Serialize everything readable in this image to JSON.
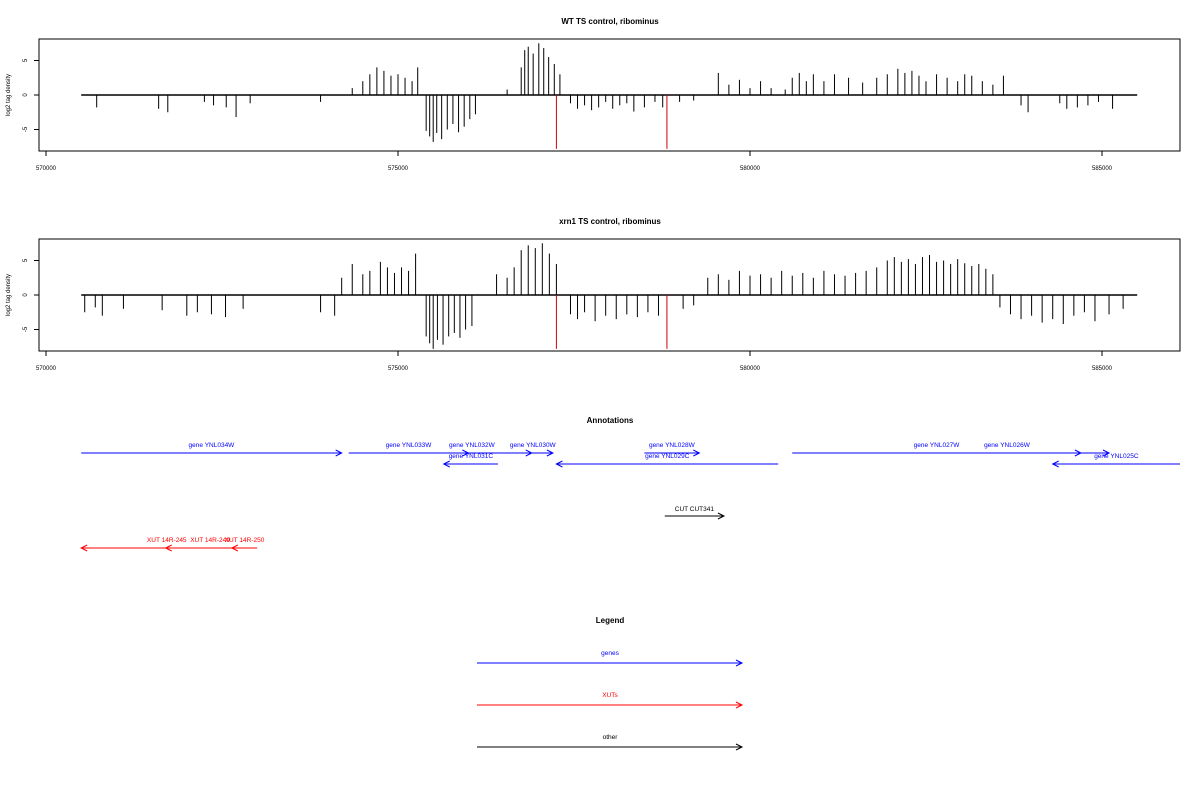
{
  "chart_data": [
    {
      "type": "bar",
      "title": "WT TS control, ribominus",
      "xlabel": "",
      "ylabel": "log2 tag density",
      "xlim": [
        570000,
        586000
      ],
      "ylim": [
        -8,
        8
      ],
      "x_ticks": [
        570000,
        575000,
        580000,
        585000
      ],
      "x_tick_labels": [
        "570000",
        "575000",
        "580000",
        "585000"
      ],
      "y_ticks": [
        -5,
        0,
        5
      ],
      "y_tick_labels": [
        "-5",
        "0",
        "5"
      ],
      "baseline": {
        "from": 570500,
        "to": 585500
      },
      "series": [
        {
          "color": "#000000",
          "bars": [
            [
              570720,
              -1.8
            ],
            [
              571600,
              -2.0
            ],
            [
              571730,
              -2.5
            ],
            [
              572250,
              -1.0
            ],
            [
              572380,
              -1.5
            ],
            [
              572560,
              -1.8
            ],
            [
              572700,
              -3.2
            ],
            [
              572900,
              -1.2
            ],
            [
              573900,
              -1.0
            ],
            [
              574350,
              1.0
            ],
            [
              574500,
              2.0
            ],
            [
              574600,
              3.0
            ],
            [
              574700,
              4.0
            ],
            [
              574800,
              3.5
            ],
            [
              574900,
              2.8
            ],
            [
              575000,
              3.0
            ],
            [
              575100,
              2.5
            ],
            [
              575200,
              2.0
            ],
            [
              575280,
              4.0
            ],
            [
              575400,
              -5.2
            ],
            [
              575450,
              -6.0
            ],
            [
              575500,
              -6.8
            ],
            [
              575550,
              -5.5
            ],
            [
              575620,
              -6.4
            ],
            [
              575700,
              -5.0
            ],
            [
              575780,
              -4.2
            ],
            [
              575860,
              -5.4
            ],
            [
              575940,
              -4.6
            ],
            [
              576020,
              -3.5
            ],
            [
              576100,
              -2.8
            ],
            [
              576550,
              0.8
            ],
            [
              576750,
              4.0
            ],
            [
              576800,
              6.5
            ],
            [
              576850,
              7.0
            ],
            [
              576920,
              6.0
            ],
            [
              577000,
              7.5
            ],
            [
              577070,
              6.8
            ],
            [
              577140,
              5.5
            ],
            [
              577220,
              4.5
            ],
            [
              577300,
              3.0
            ],
            [
              577450,
              -1.2
            ],
            [
              577550,
              -2.0
            ],
            [
              577650,
              -1.5
            ],
            [
              577750,
              -2.2
            ],
            [
              577850,
              -1.8
            ],
            [
              577950,
              -1.0
            ],
            [
              578050,
              -2.0
            ],
            [
              578150,
              -1.5
            ],
            [
              578250,
              -1.2
            ],
            [
              578350,
              -2.4
            ],
            [
              578500,
              -1.8
            ],
            [
              578650,
              -1.0
            ],
            [
              578760,
              -1.8
            ],
            [
              579000,
              -1.0
            ],
            [
              579200,
              -0.8
            ],
            [
              579550,
              3.2
            ],
            [
              579700,
              1.5
            ],
            [
              579850,
              2.2
            ],
            [
              580000,
              1.0
            ],
            [
              580150,
              2.0
            ],
            [
              580300,
              1.0
            ],
            [
              580500,
              0.8
            ],
            [
              580600,
              2.5
            ],
            [
              580700,
              3.2
            ],
            [
              580800,
              2.0
            ],
            [
              580900,
              3.0
            ],
            [
              581050,
              2.0
            ],
            [
              581200,
              3.0
            ],
            [
              581400,
              2.5
            ],
            [
              581600,
              1.8
            ],
            [
              581800,
              2.5
            ],
            [
              581950,
              3.0
            ],
            [
              582100,
              3.8
            ],
            [
              582200,
              3.2
            ],
            [
              582300,
              3.5
            ],
            [
              582400,
              2.8
            ],
            [
              582500,
              2.0
            ],
            [
              582650,
              3.0
            ],
            [
              582800,
              2.5
            ],
            [
              582950,
              2.0
            ],
            [
              583050,
              3.0
            ],
            [
              583150,
              2.8
            ],
            [
              583300,
              2.0
            ],
            [
              583450,
              1.5
            ],
            [
              583600,
              2.8
            ],
            [
              583850,
              -1.5
            ],
            [
              583950,
              -2.5
            ],
            [
              584400,
              -1.2
            ],
            [
              584500,
              -2.0
            ],
            [
              584650,
              -1.8
            ],
            [
              584800,
              -1.5
            ],
            [
              584950,
              -1.0
            ],
            [
              585150,
              -2.0
            ]
          ]
        },
        {
          "color": "#cc0000",
          "bars": [
            [
              577250,
              -7.8
            ],
            [
              578820,
              -7.8
            ]
          ]
        }
      ]
    },
    {
      "type": "bar",
      "title": "xrn1 TS control, ribominus",
      "xlabel": "",
      "ylabel": "log2 tag density",
      "xlim": [
        570000,
        586000
      ],
      "ylim": [
        -8,
        8
      ],
      "x_ticks": [
        570000,
        575000,
        580000,
        585000
      ],
      "x_tick_labels": [
        "570000",
        "575000",
        "580000",
        "585000"
      ],
      "y_ticks": [
        -5,
        0,
        5
      ],
      "y_tick_labels": [
        "-5",
        "0",
        "5"
      ],
      "baseline": {
        "from": 570500,
        "to": 585500
      },
      "series": [
        {
          "color": "#000000",
          "bars": [
            [
              570550,
              -2.5
            ],
            [
              570700,
              -1.8
            ],
            [
              570800,
              -3.0
            ],
            [
              571100,
              -2.0
            ],
            [
              571650,
              -2.2
            ],
            [
              572000,
              -3.0
            ],
            [
              572150,
              -2.5
            ],
            [
              572350,
              -2.8
            ],
            [
              572550,
              -3.2
            ],
            [
              572800,
              -2.0
            ],
            [
              573900,
              -2.5
            ],
            [
              574100,
              -3.0
            ],
            [
              574200,
              2.5
            ],
            [
              574350,
              4.5
            ],
            [
              574500,
              3.0
            ],
            [
              574600,
              3.5
            ],
            [
              574750,
              4.8
            ],
            [
              574850,
              4.0
            ],
            [
              574950,
              3.2
            ],
            [
              575050,
              4.0
            ],
            [
              575150,
              3.5
            ],
            [
              575250,
              6.0
            ],
            [
              575400,
              -6.0
            ],
            [
              575450,
              -7.0
            ],
            [
              575500,
              -7.8
            ],
            [
              575560,
              -6.5
            ],
            [
              575640,
              -7.2
            ],
            [
              575720,
              -6.0
            ],
            [
              575800,
              -5.5
            ],
            [
              575880,
              -6.2
            ],
            [
              575960,
              -5.0
            ],
            [
              576050,
              -4.5
            ],
            [
              576400,
              3.0
            ],
            [
              576550,
              2.5
            ],
            [
              576650,
              4.0
            ],
            [
              576750,
              6.5
            ],
            [
              576850,
              7.2
            ],
            [
              576950,
              6.8
            ],
            [
              577050,
              7.5
            ],
            [
              577150,
              6.0
            ],
            [
              577250,
              4.5
            ],
            [
              577450,
              -2.8
            ],
            [
              577550,
              -3.5
            ],
            [
              577650,
              -2.5
            ],
            [
              577800,
              -3.8
            ],
            [
              577950,
              -3.0
            ],
            [
              578100,
              -3.5
            ],
            [
              578250,
              -2.8
            ],
            [
              578400,
              -3.2
            ],
            [
              578550,
              -2.5
            ],
            [
              578700,
              -3.0
            ],
            [
              579050,
              -2.0
            ],
            [
              579200,
              -1.5
            ],
            [
              579400,
              2.5
            ],
            [
              579550,
              3.0
            ],
            [
              579700,
              2.2
            ],
            [
              579850,
              3.5
            ],
            [
              580000,
              2.8
            ],
            [
              580150,
              3.0
            ],
            [
              580300,
              2.5
            ],
            [
              580450,
              3.5
            ],
            [
              580600,
              2.8
            ],
            [
              580750,
              3.2
            ],
            [
              580900,
              2.5
            ],
            [
              581050,
              3.5
            ],
            [
              581200,
              3.0
            ],
            [
              581350,
              2.8
            ],
            [
              581500,
              3.2
            ],
            [
              581650,
              3.5
            ],
            [
              581800,
              4.0
            ],
            [
              581950,
              5.0
            ],
            [
              582050,
              5.5
            ],
            [
              582150,
              4.8
            ],
            [
              582250,
              5.2
            ],
            [
              582350,
              4.5
            ],
            [
              582450,
              5.5
            ],
            [
              582550,
              5.8
            ],
            [
              582650,
              4.8
            ],
            [
              582750,
              5.0
            ],
            [
              582850,
              4.5
            ],
            [
              582950,
              5.2
            ],
            [
              583050,
              4.6
            ],
            [
              583150,
              4.2
            ],
            [
              583250,
              4.5
            ],
            [
              583350,
              3.8
            ],
            [
              583450,
              3.0
            ],
            [
              583550,
              -1.8
            ],
            [
              583700,
              -2.8
            ],
            [
              583850,
              -3.5
            ],
            [
              584000,
              -3.0
            ],
            [
              584150,
              -4.0
            ],
            [
              584300,
              -3.5
            ],
            [
              584450,
              -4.2
            ],
            [
              584600,
              -3.0
            ],
            [
              584750,
              -2.5
            ],
            [
              584900,
              -3.8
            ],
            [
              585100,
              -2.8
            ],
            [
              585300,
              -2.0
            ]
          ]
        },
        {
          "color": "#cc0000",
          "bars": [
            [
              577250,
              -7.8
            ],
            [
              578820,
              -7.8
            ]
          ]
        }
      ]
    }
  ],
  "annotations": {
    "title": "Annotations",
    "colors": {
      "gene": "#0000ff",
      "xut": "#ff0000",
      "other": "#000000"
    },
    "tracks": [
      {
        "label": "gene YNL034W",
        "kind": "gene",
        "start": 570500,
        "end": 574200,
        "dir": "right",
        "row": 0
      },
      {
        "label": "gene YNL033W",
        "kind": "gene",
        "start": 574300,
        "end": 576000,
        "dir": "right",
        "row": 0
      },
      {
        "label": "gene YNL032W",
        "kind": "gene",
        "start": 575200,
        "end": 576900,
        "dir": "right",
        "row": 0
      },
      {
        "label": "gene YNL031C",
        "kind": "gene",
        "start": 575650,
        "end": 576420,
        "dir": "left",
        "row": 1
      },
      {
        "label": "gene YNL030W",
        "kind": "gene",
        "start": 576630,
        "end": 577200,
        "dir": "right",
        "row": 0
      },
      {
        "label": "gene YNL029C",
        "kind": "gene",
        "start": 577250,
        "end": 580400,
        "dir": "left",
        "row": 1
      },
      {
        "label": "gene YNL028W",
        "kind": "gene",
        "start": 578500,
        "end": 579280,
        "dir": "right",
        "row": 0
      },
      {
        "label": "gene YNL027W",
        "kind": "gene",
        "start": 580600,
        "end": 584700,
        "dir": "right",
        "row": 0
      },
      {
        "label": "gene YNL026W",
        "kind": "gene",
        "start": 582200,
        "end": 585100,
        "dir": "right",
        "row": 0
      },
      {
        "label": "gene YNL025C",
        "kind": "gene",
        "start": 584300,
        "end": 586200,
        "dir": "left",
        "row": 1
      },
      {
        "label": "CUT CUT341",
        "kind": "other",
        "start": 578790,
        "end": 579630,
        "dir": "right",
        "row": 2
      },
      {
        "label": "XUT 14R-245",
        "kind": "xut",
        "start": 570500,
        "end": 572930,
        "dir": "left",
        "row": 3
      },
      {
        "label": "XUT 14R-249",
        "kind": "xut",
        "start": 571700,
        "end": 572960,
        "dir": "left",
        "row": 3
      },
      {
        "label": "XUT 14R-250",
        "kind": "xut",
        "start": 572640,
        "end": 573000,
        "dir": "left",
        "row": 3
      }
    ]
  },
  "legend": {
    "title": "Legend",
    "items": [
      {
        "label": "genes",
        "color": "#0000ff"
      },
      {
        "label": "XUTs",
        "color": "#ff0000"
      },
      {
        "label": "other",
        "color": "#000000"
      }
    ]
  }
}
